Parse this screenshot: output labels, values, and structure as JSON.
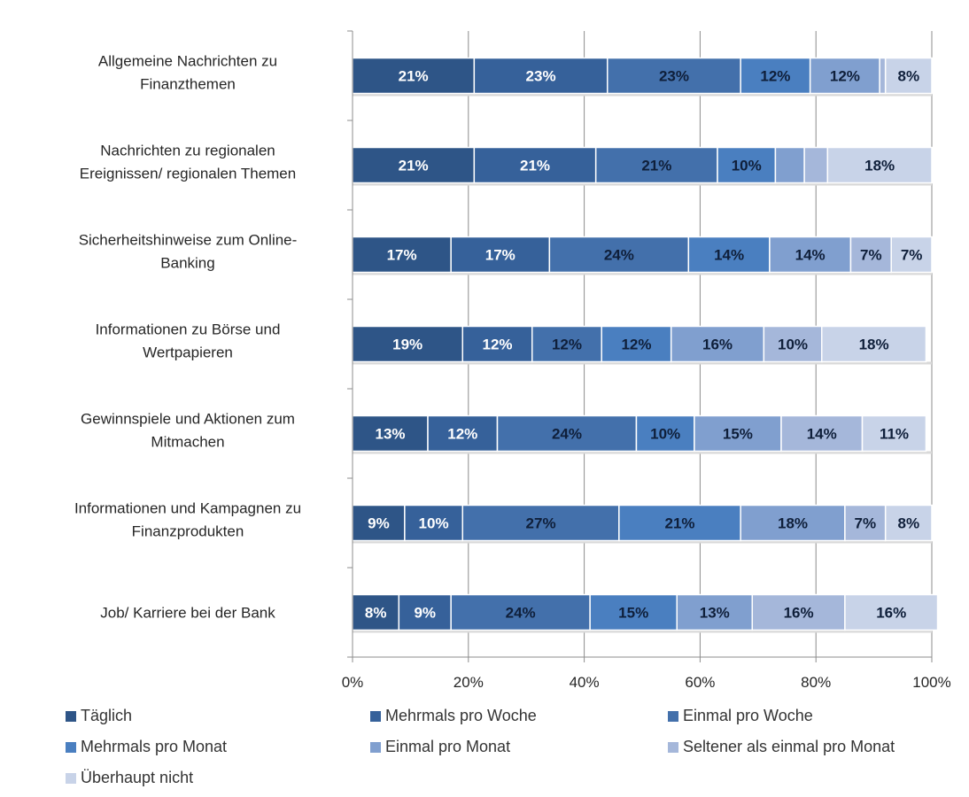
{
  "chart_data": {
    "type": "bar",
    "orientation": "horizontal",
    "stacked": "percent",
    "title": "",
    "xlabel": "",
    "ylabel": "",
    "xlim": [
      0,
      100
    ],
    "x_ticks": [
      "0%",
      "20%",
      "40%",
      "60%",
      "80%",
      "100%"
    ],
    "grid": true,
    "legend_position": "bottom",
    "categories": [
      [
        "Allgemeine Nachrichten zu",
        "Finanzthemen"
      ],
      [
        "Nachrichten zu regionalen",
        "Ereignissen/ regionalen Themen"
      ],
      [
        "Sicherheitshinweise zum Online-",
        "Banking"
      ],
      [
        "Informationen zu Börse und",
        "Wertpapieren"
      ],
      [
        "Gewinnspiele und Aktionen zum",
        "Mitmachen"
      ],
      [
        "Informationen und Kampagnen zu",
        "Finanzprodukten"
      ],
      [
        "Job/ Karriere bei der Bank"
      ]
    ],
    "series": [
      {
        "name": "Täglich",
        "color": "#2e5587",
        "label_color": "#ffffff",
        "values": [
          21,
          21,
          17,
          19,
          13,
          9,
          8
        ],
        "labels_shown": [
          true,
          true,
          true,
          true,
          true,
          true,
          true
        ]
      },
      {
        "name": "Mehrmals pro Woche",
        "color": "#36619a",
        "label_color": "#ffffff",
        "values": [
          23,
          21,
          17,
          12,
          12,
          10,
          9
        ],
        "labels_shown": [
          true,
          true,
          true,
          true,
          true,
          true,
          true
        ]
      },
      {
        "name": "Einmal pro Woche",
        "color": "#4370ab",
        "label_color": "#0f1f3a",
        "values": [
          23,
          21,
          24,
          12,
          24,
          27,
          24
        ],
        "labels_shown": [
          true,
          true,
          true,
          true,
          true,
          true,
          true
        ]
      },
      {
        "name": "Mehrmals pro Monat",
        "color": "#4a7fc0",
        "label_color": "#0f1f3a",
        "values": [
          12,
          10,
          14,
          12,
          10,
          21,
          15
        ],
        "labels_shown": [
          true,
          true,
          true,
          true,
          true,
          true,
          true
        ]
      },
      {
        "name": "Einmal pro Monat",
        "color": "#809fcf",
        "label_color": "#0f1f3a",
        "values": [
          12,
          5,
          14,
          16,
          15,
          18,
          13
        ],
        "labels_shown": [
          true,
          false,
          true,
          true,
          true,
          true,
          true
        ]
      },
      {
        "name": "Seltener als einmal pro Monat",
        "color": "#a5b7da",
        "label_color": "#0f1f3a",
        "values": [
          1,
          4,
          7,
          10,
          14,
          7,
          16
        ],
        "labels_shown": [
          false,
          false,
          true,
          true,
          true,
          true,
          true
        ]
      },
      {
        "name": "Überhaupt nicht",
        "color": "#c8d3e8",
        "label_color": "#0f1f3a",
        "values": [
          8,
          18,
          7,
          18,
          11,
          8,
          16
        ],
        "labels_shown": [
          true,
          true,
          true,
          true,
          true,
          true,
          true
        ]
      }
    ]
  }
}
